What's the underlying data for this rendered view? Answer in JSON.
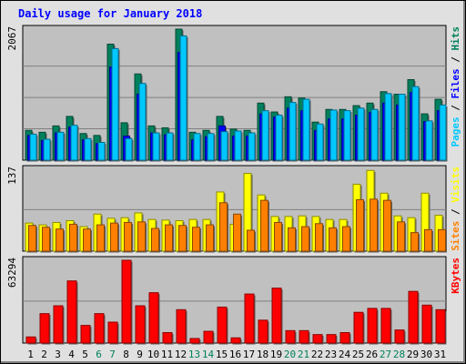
{
  "chart_data": {
    "type": "bar",
    "title": "Daily usage for January 2018",
    "categories": [
      "1",
      "2",
      "3",
      "4",
      "5",
      "6",
      "7",
      "8",
      "9",
      "10",
      "11",
      "12",
      "13",
      "14",
      "15",
      "16",
      "17",
      "18",
      "19",
      "20",
      "21",
      "22",
      "23",
      "24",
      "25",
      "26",
      "27",
      "28",
      "29",
      "30",
      "31"
    ],
    "weekend_days": [
      "6",
      "7",
      "13",
      "14",
      "20",
      "21",
      "27",
      "28"
    ],
    "colors": {
      "hits": "#00805C",
      "files": "#0000FF",
      "pages": "#00C8FF",
      "visits": "#FFFF00",
      "sites": "#FF8000",
      "kbytes": "#FF0000",
      "title": "#0000FF",
      "weekend_label": "#00805C",
      "weekday_label": "#000000",
      "panel_bg": "#C0C0C0",
      "background": "#E0E0E0"
    },
    "panels": [
      {
        "id": "hits-files-pages",
        "ymax_label": "2067",
        "ylim": [
          0,
          2067
        ],
        "legend": [
          {
            "text": "Pages",
            "color": "#00C8FF"
          },
          {
            "text": " / ",
            "color": "#000000"
          },
          {
            "text": "Files",
            "color": "#0000FF"
          },
          {
            "text": " / ",
            "color": "#000000"
          },
          {
            "text": "Hits",
            "color": "#00805C"
          }
        ],
        "series": [
          {
            "name": "Hits",
            "values": [
              470,
              440,
              540,
              690,
              420,
              390,
              1830,
              590,
              1360,
              540,
              510,
              2067,
              440,
              470,
              690,
              490,
              470,
              900,
              760,
              1000,
              980,
              600,
              800,
              800,
              860,
              900,
              1080,
              1040,
              1270,
              730,
              960
            ]
          },
          {
            "name": "Files",
            "values": [
              390,
              310,
              430,
              520,
              320,
              260,
              1470,
              380,
              1040,
              430,
              400,
              1700,
              320,
              370,
              540,
              380,
              380,
              730,
              680,
              820,
              780,
              470,
              650,
              650,
              710,
              750,
              900,
              870,
              1070,
              610,
              780
            ]
          },
          {
            "name": "Pages",
            "values": [
              410,
              330,
              440,
              550,
              340,
              280,
              1760,
              340,
              1210,
              430,
              430,
              1960,
              420,
              420,
              450,
              460,
              430,
              780,
              710,
              910,
              960,
              570,
              790,
              780,
              820,
              800,
              1050,
              1040,
              1160,
              620,
              870
            ]
          }
        ]
      },
      {
        "id": "visits-sites",
        "ymax_label": "137",
        "ylim": [
          0,
          137
        ],
        "legend": [
          {
            "text": "Sites",
            "color": "#FF8000"
          },
          {
            "text": " / ",
            "color": "#000000"
          },
          {
            "text": "Visits",
            "color": "#FFFF00"
          }
        ],
        "series": [
          {
            "name": "Visits",
            "values": [
              47,
              44,
              48,
              51,
              41,
              62,
              55,
              56,
              64,
              53,
              52,
              51,
              53,
              53,
              99,
              45,
              130,
              94,
              58,
              58,
              59,
              58,
              53,
              53,
              112,
              135,
              97,
              59,
              56,
              97,
              60
            ]
          },
          {
            "name": "Sites",
            "values": [
              43,
              40,
              37,
              45,
              37,
              44,
              47,
              48,
              49,
              38,
              44,
              43,
              40,
              44,
              81,
              62,
              35,
              85,
              48,
              39,
              41,
              46,
              39,
              41,
              86,
              87,
              85,
              49,
              31,
              36,
              36
            ]
          }
        ]
      },
      {
        "id": "kbytes",
        "ymax_label": "63294",
        "ylim": [
          0,
          63294
        ],
        "legend": [
          {
            "text": "KBytes",
            "color": "#FF0000"
          }
        ],
        "series": [
          {
            "name": "KBytes",
            "values": [
              4700,
              22500,
              28500,
              47500,
              13500,
              22500,
              16000,
              63294,
              28500,
              38500,
              8000,
              25500,
              3500,
              9000,
              27500,
              4000,
              37500,
              17500,
              42000,
              9500,
              9500,
              6500,
              6500,
              8000,
              23500,
              26500,
              26500,
              10000,
              39500,
              29000,
              25500
            ]
          }
        ]
      }
    ]
  }
}
